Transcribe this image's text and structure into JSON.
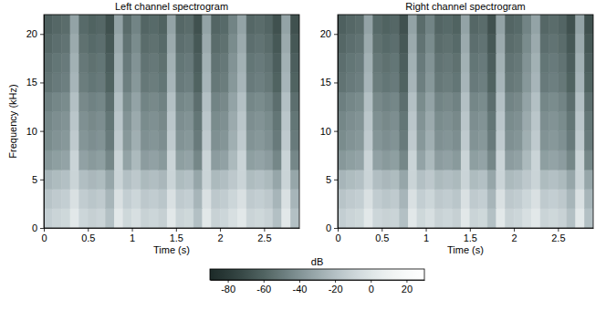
{
  "chart_data": [
    {
      "type": "heatmap",
      "title": "Left channel spectrogram",
      "x_label": "Time (s)",
      "y_label": "Frequency (kHz)",
      "x_bins": [
        0,
        0.1,
        0.2,
        0.3,
        0.4,
        0.5,
        0.6,
        0.7,
        0.8,
        0.9,
        1,
        1.1,
        1.2,
        1.3,
        1.4,
        1.5,
        1.6,
        1.7,
        1.8,
        1.9,
        2,
        2.1,
        2.2,
        2.3,
        2.4,
        2.5,
        2.6,
        2.7,
        2.8,
        2.9
      ],
      "y_bins": [
        0,
        2,
        4,
        6,
        8,
        10,
        12,
        14,
        16,
        18,
        20,
        22
      ],
      "values": [
        [
          -13,
          -10,
          -8,
          2,
          -9,
          -12,
          -10,
          -20,
          2,
          -8,
          -4,
          -11,
          -9,
          -12,
          2,
          -10,
          -8,
          -20,
          2,
          -11,
          -9,
          -4,
          2,
          -10,
          -8,
          -11,
          -20,
          2,
          -20
        ],
        [
          -18,
          -15,
          -13,
          -3,
          -14,
          -17,
          -15,
          -25,
          -3,
          -13,
          -9,
          -16,
          -14,
          -17,
          -3,
          -15,
          -13,
          -25,
          -3,
          -16,
          -14,
          -9,
          -3,
          -15,
          -13,
          -16,
          -25,
          -3,
          -25
        ],
        [
          -25,
          -22,
          -20,
          -10,
          -21,
          -24,
          -22,
          -32,
          -10,
          -20,
          -16,
          -23,
          -21,
          -24,
          -10,
          -22,
          -20,
          -32,
          -10,
          -23,
          -21,
          -16,
          -10,
          -22,
          -20,
          -23,
          -32,
          -10,
          -32
        ],
        [
          -38,
          -35,
          -33,
          -10,
          -34,
          -37,
          -35,
          -45,
          -10,
          -33,
          -23,
          -36,
          -34,
          -37,
          -10,
          -35,
          -33,
          -45,
          -10,
          -36,
          -34,
          -23,
          -10,
          -35,
          -33,
          -36,
          -45,
          -10,
          -45
        ],
        [
          -43,
          -40,
          -38,
          -15,
          -39,
          -42,
          -40,
          -50,
          -15,
          -38,
          -28,
          -41,
          -39,
          -42,
          -15,
          -40,
          -38,
          -50,
          -15,
          -41,
          -39,
          -28,
          -15,
          -40,
          -38,
          -41,
          -50,
          -15,
          -50
        ],
        [
          -45,
          -42,
          -40,
          -17,
          -41,
          -44,
          -42,
          -52,
          -17,
          -40,
          -30,
          -43,
          -41,
          -44,
          -17,
          -42,
          -40,
          -52,
          -17,
          -43,
          -41,
          -30,
          -17,
          -42,
          -40,
          -43,
          -52,
          -17,
          -52
        ],
        [
          -48,
          -45,
          -43,
          -20,
          -44,
          -47,
          -45,
          -55,
          -20,
          -43,
          -33,
          -46,
          -44,
          -47,
          -20,
          -45,
          -43,
          -55,
          -20,
          -46,
          -44,
          -33,
          -20,
          -45,
          -43,
          -46,
          -55,
          -20,
          -55
        ],
        [
          -53,
          -50,
          -48,
          -25,
          -49,
          -52,
          -50,
          -60,
          -25,
          -48,
          -38,
          -51,
          -49,
          -52,
          -25,
          -50,
          -48,
          -60,
          -25,
          -51,
          -49,
          -38,
          -25,
          -50,
          -48,
          -51,
          -60,
          -25,
          -60
        ],
        [
          -55,
          -52,
          -50,
          -27,
          -51,
          -54,
          -52,
          -62,
          -27,
          -50,
          -40,
          -53,
          -51,
          -54,
          -27,
          -52,
          -50,
          -62,
          -27,
          -53,
          -51,
          -40,
          -27,
          -52,
          -50,
          -53,
          -62,
          -27,
          -62
        ],
        [
          -58,
          -55,
          -53,
          -30,
          -54,
          -57,
          -55,
          -65,
          -30,
          -53,
          -43,
          -56,
          -54,
          -57,
          -30,
          -55,
          -53,
          -65,
          -30,
          -56,
          -54,
          -43,
          -30,
          -55,
          -53,
          -56,
          -65,
          -30,
          -65
        ],
        [
          -61,
          -58,
          -56,
          -33,
          -57,
          -60,
          -58,
          -68,
          -33,
          -56,
          -46,
          -59,
          -57,
          -60,
          -33,
          -58,
          -56,
          -68,
          -33,
          -59,
          -57,
          -46,
          -33,
          -58,
          -56,
          -59,
          -68,
          -33,
          -68
        ]
      ],
      "xlim": [
        0,
        2.9
      ],
      "ylim": [
        0,
        22
      ],
      "xticks": [
        0,
        0.5,
        1,
        1.5,
        2,
        2.5
      ],
      "yticks": [
        0,
        5,
        10,
        15,
        20
      ]
    },
    {
      "type": "heatmap",
      "title": "Right channel spectrogram",
      "x_label": "Time (s)",
      "x_bins": [
        0,
        0.1,
        0.2,
        0.3,
        0.4,
        0.5,
        0.6,
        0.7,
        0.8,
        0.9,
        1,
        1.1,
        1.2,
        1.3,
        1.4,
        1.5,
        1.6,
        1.7,
        1.8,
        1.9,
        2,
        2.1,
        2.2,
        2.3,
        2.4,
        2.5,
        2.6,
        2.7,
        2.8,
        2.9
      ],
      "y_bins": [
        0,
        2,
        4,
        6,
        8,
        10,
        12,
        14,
        16,
        18,
        20,
        22
      ],
      "values": [
        [
          -13,
          -10,
          -8,
          2,
          -9,
          -11,
          -10,
          -20,
          2,
          -8,
          -4,
          -11,
          -9,
          -12,
          2,
          -10,
          -8,
          -20,
          2,
          -11,
          -9,
          -4,
          2,
          -10,
          -8,
          -11,
          -20,
          2,
          -20
        ],
        [
          -18,
          -15,
          -13,
          -3,
          -14,
          -17,
          -15,
          -25,
          -3,
          -13,
          -9,
          -16,
          -14,
          -17,
          -3,
          -15,
          -13,
          -25,
          -3,
          -16,
          -14,
          -9,
          -3,
          -15,
          -13,
          -16,
          -25,
          -3,
          -25
        ],
        [
          -25,
          -22,
          -20,
          -10,
          -21,
          -24,
          -22,
          -32,
          -10,
          -20,
          -16,
          -23,
          -21,
          -23,
          -10,
          -22,
          -20,
          -32,
          -10,
          -23,
          -21,
          -16,
          -10,
          -22,
          -20,
          -23,
          -32,
          -10,
          -32
        ],
        [
          -38,
          -35,
          -33,
          -10,
          -34,
          -37,
          -35,
          -45,
          -10,
          -33,
          -23,
          -36,
          -34,
          -37,
          -10,
          -35,
          -33,
          -45,
          -10,
          -36,
          -34,
          -23,
          -10,
          -35,
          -33,
          -36,
          -45,
          -10,
          -45
        ],
        [
          -43,
          -40,
          -38,
          -15,
          -39,
          -42,
          -40,
          -50,
          -15,
          -38,
          -28,
          -41,
          -39,
          -42,
          -15,
          -40,
          -38,
          -50,
          -15,
          -41,
          -39,
          -28,
          -15,
          -40,
          -38,
          -41,
          -50,
          -15,
          -50
        ],
        [
          -45,
          -42,
          -40,
          -17,
          -41,
          -44,
          -42,
          -52,
          -17,
          -40,
          -30,
          -43,
          -41,
          -44,
          -17,
          -42,
          -40,
          -52,
          -17,
          -43,
          -41,
          -30,
          -17,
          -42,
          -40,
          -43,
          -52,
          -17,
          -52
        ],
        [
          -48,
          -45,
          -43,
          -20,
          -44,
          -47,
          -45,
          -55,
          -20,
          -43,
          -33,
          -46,
          -44,
          -47,
          -20,
          -45,
          -43,
          -55,
          -20,
          -46,
          -44,
          -33,
          -20,
          -45,
          -43,
          -46,
          -55,
          -20,
          -55
        ],
        [
          -53,
          -50,
          -48,
          -25,
          -49,
          -52,
          -50,
          -60,
          -25,
          -48,
          -38,
          -51,
          -49,
          -52,
          -25,
          -50,
          -48,
          -60,
          -25,
          -51,
          -49,
          -38,
          -25,
          -50,
          -48,
          -51,
          -60,
          -25,
          -60
        ],
        [
          -55,
          -52,
          -50,
          -27,
          -51,
          -54,
          -52,
          -62,
          -27,
          -50,
          -40,
          -53,
          -51,
          -54,
          -27,
          -52,
          -50,
          -62,
          -27,
          -53,
          -51,
          -40,
          -27,
          -52,
          -50,
          -53,
          -62,
          -27,
          -62
        ],
        [
          -58,
          -55,
          -53,
          -30,
          -54,
          -57,
          -55,
          -65,
          -30,
          -53,
          -43,
          -56,
          -54,
          -57,
          -30,
          -55,
          -53,
          -65,
          -30,
          -56,
          -54,
          -43,
          -30,
          -55,
          -53,
          -56,
          -65,
          -30,
          -65
        ],
        [
          -61,
          -58,
          -56,
          -33,
          -57,
          -60,
          -58,
          -68,
          -33,
          -56,
          -46,
          -59,
          -57,
          -60,
          -33,
          -58,
          -56,
          -68,
          -33,
          -59,
          -57,
          -46,
          -33,
          -58,
          -56,
          -59,
          -68,
          -33,
          -68
        ]
      ],
      "xlim": [
        0,
        2.9
      ],
      "ylim": [
        0,
        22
      ],
      "xticks": [
        0,
        0.5,
        1,
        1.5,
        2,
        2.5
      ],
      "yticks": [
        0,
        5,
        10,
        15,
        20
      ]
    }
  ],
  "colorbar": {
    "label": "dB",
    "range": [
      -90,
      30
    ],
    "ticks": [
      -80,
      -60,
      -40,
      -20,
      0,
      20
    ]
  }
}
